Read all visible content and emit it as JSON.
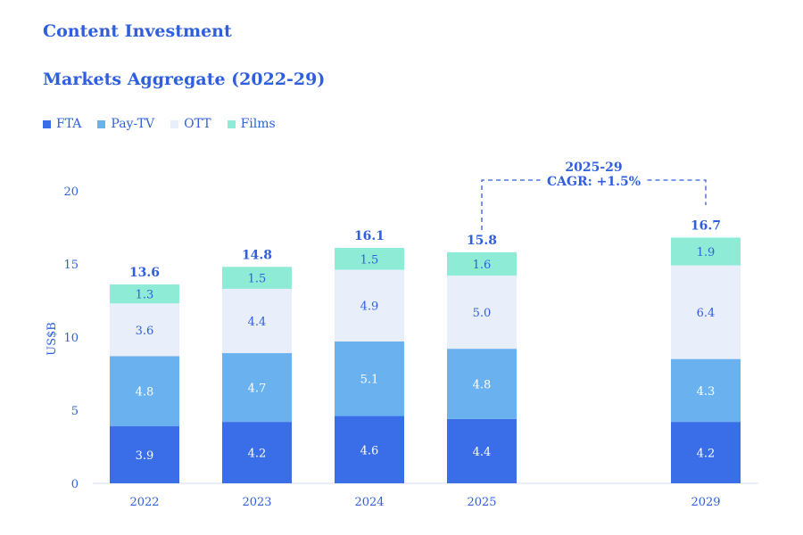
{
  "header": {
    "title": "Content Investment",
    "subtitle": "Markets Aggregate (2022-29)"
  },
  "legend": [
    {
      "label": "FTA",
      "color": "#3a6ee8"
    },
    {
      "label": "Pay-TV",
      "color": "#6ab1f0"
    },
    {
      "label": "OTT",
      "color": "#e8effb"
    },
    {
      "label": "Films",
      "color": "#8eebd6"
    }
  ],
  "chart_data": {
    "type": "bar",
    "stacked": true,
    "categories": [
      "2022",
      "2023",
      "2024",
      "2025",
      "2029"
    ],
    "series": [
      {
        "name": "FTA",
        "values": [
          3.9,
          4.2,
          4.6,
          4.4,
          4.2
        ]
      },
      {
        "name": "Pay-TV",
        "values": [
          4.8,
          4.7,
          5.1,
          4.8,
          4.3
        ]
      },
      {
        "name": "OTT",
        "values": [
          3.6,
          4.4,
          4.9,
          5.0,
          6.4
        ]
      },
      {
        "name": "Films",
        "values": [
          1.3,
          1.5,
          1.5,
          1.6,
          1.9
        ]
      }
    ],
    "totals": [
      "13.6",
      "14.8",
      "16.1",
      "15.8",
      "16.7"
    ],
    "segment_labels": [
      [
        "3.9",
        "4.2",
        "4.6",
        "4.4",
        "4.2"
      ],
      [
        "4.8",
        "4.7",
        "5.1",
        "4.8",
        "4.3"
      ],
      [
        "3.6",
        "4.4",
        "4.9",
        "5.0",
        "6.4"
      ],
      [
        "1.3",
        "1.5",
        "1.5",
        "1.6",
        "1.9"
      ]
    ],
    "ylabel": "US$B",
    "ylim": [
      0,
      20
    ],
    "yticks": [
      "0",
      "5",
      "10",
      "15",
      "20"
    ],
    "grid": false,
    "legend_position": "top-left",
    "annotation": {
      "from": "2025",
      "to": "2029",
      "line1": "2025-29",
      "line2": "CAGR: +1.5%"
    }
  }
}
